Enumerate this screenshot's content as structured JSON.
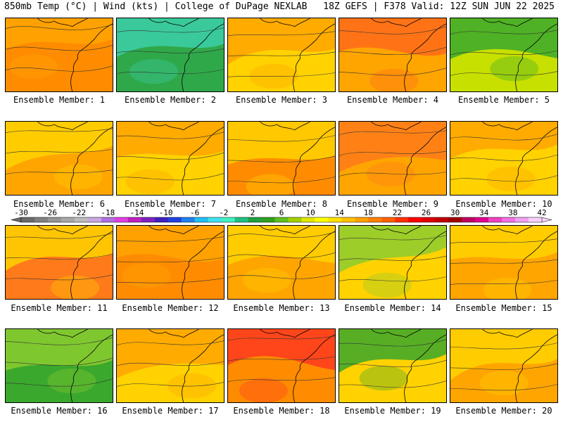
{
  "header": {
    "left": "850mb Temp (°C) | Wind (kts) | College of DuPage NEXLAB",
    "right": "18Z GEFS | F378 Valid: 12Z SUN JUN 22 2025"
  },
  "label_prefix": "Ensemble Member:",
  "members": [
    {
      "number": "1",
      "dominant": "#ff8c00",
      "secondary": "#ffa500"
    },
    {
      "number": "2",
      "dominant": "#2fa84a",
      "secondary": "#3ccfa8"
    },
    {
      "number": "3",
      "dominant": "#ffd200",
      "secondary": "#ffa500"
    },
    {
      "number": "4",
      "dominant": "#ffa500",
      "secondary": "#ff6a1a"
    },
    {
      "number": "5",
      "dominant": "#c8e000",
      "secondary": "#3aa82c"
    },
    {
      "number": "6",
      "dominant": "#ffa500",
      "secondary": "#ffd200"
    },
    {
      "number": "7",
      "dominant": "#ffd200",
      "secondary": "#ffa500"
    },
    {
      "number": "8",
      "dominant": "#ff8c00",
      "secondary": "#ffd200"
    },
    {
      "number": "9",
      "dominant": "#ffa500",
      "secondary": "#ff7a1a"
    },
    {
      "number": "10",
      "dominant": "#ffd200",
      "secondary": "#ffa500"
    },
    {
      "number": "11",
      "dominant": "#ff7a1a",
      "secondary": "#ffd200"
    },
    {
      "number": "12",
      "dominant": "#ff8c00",
      "secondary": "#ffa500"
    },
    {
      "number": "13",
      "dominant": "#ffa500",
      "secondary": "#ffd200"
    },
    {
      "number": "14",
      "dominant": "#ffd200",
      "secondary": "#8ccc30"
    },
    {
      "number": "15",
      "dominant": "#ffa500",
      "secondary": "#ffd200"
    },
    {
      "number": "16",
      "dominant": "#3aa82c",
      "secondary": "#8ccc30"
    },
    {
      "number": "17",
      "dominant": "#ffd200",
      "secondary": "#ffa500"
    },
    {
      "number": "18",
      "dominant": "#ff8c00",
      "secondary": "#ff3a20"
    },
    {
      "number": "19",
      "dominant": "#ffd200",
      "secondary": "#3aa82c"
    },
    {
      "number": "20",
      "dominant": "#ffa500",
      "secondary": "#ffd200"
    }
  ],
  "colorbar": {
    "tick_labels": [
      "-30",
      "-26",
      "-22",
      "-18",
      "-14",
      "-10",
      "-6",
      "-2",
      "2",
      "6",
      "10",
      "14",
      "18",
      "22",
      "26",
      "30",
      "34",
      "38",
      "42"
    ],
    "colors": [
      "#6a6a6a",
      "#808080",
      "#969696",
      "#a8a8a8",
      "#bcbcbc",
      "#c8a8e0",
      "#b070e0",
      "#e040e0",
      "#c020c0",
      "#8020c0",
      "#4020c0",
      "#2040e0",
      "#2080f0",
      "#20c0f0",
      "#40e0f0",
      "#40f0c0",
      "#20c080",
      "#20a040",
      "#30a020",
      "#60c020",
      "#a0d000",
      "#e0e800",
      "#ffff00",
      "#ffe000",
      "#ffc000",
      "#ffa000",
      "#ff8000",
      "#ff6000",
      "#ff3000",
      "#ff0000",
      "#e00000",
      "#c00000",
      "#a00000",
      "#c00060",
      "#e00090",
      "#f040c0",
      "#f070e0",
      "#f0a0f0",
      "#f8d0f8"
    ]
  }
}
